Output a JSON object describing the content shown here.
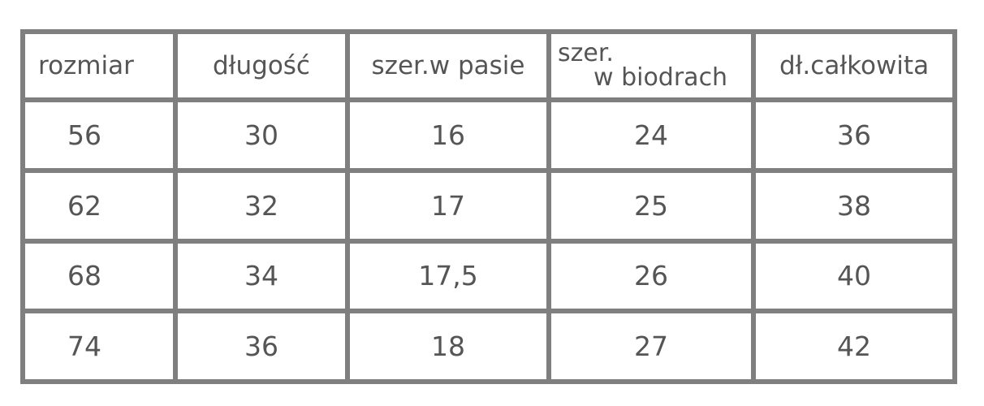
{
  "size_table": {
    "headers": [
      "rozmiar",
      "długość",
      "szer.w pasie",
      [
        "szer.",
        "w biodrach"
      ],
      "dł.całkowita"
    ],
    "rows": [
      [
        "56",
        "30",
        "16",
        "24",
        "36"
      ],
      [
        "62",
        "32",
        "17",
        "25",
        "38"
      ],
      [
        "68",
        "34",
        "17,5",
        "26",
        "40"
      ],
      [
        "74",
        "36",
        "18",
        "27",
        "42"
      ]
    ]
  },
  "colors": {
    "grid": "#7f7f7f",
    "text": "#555555"
  }
}
